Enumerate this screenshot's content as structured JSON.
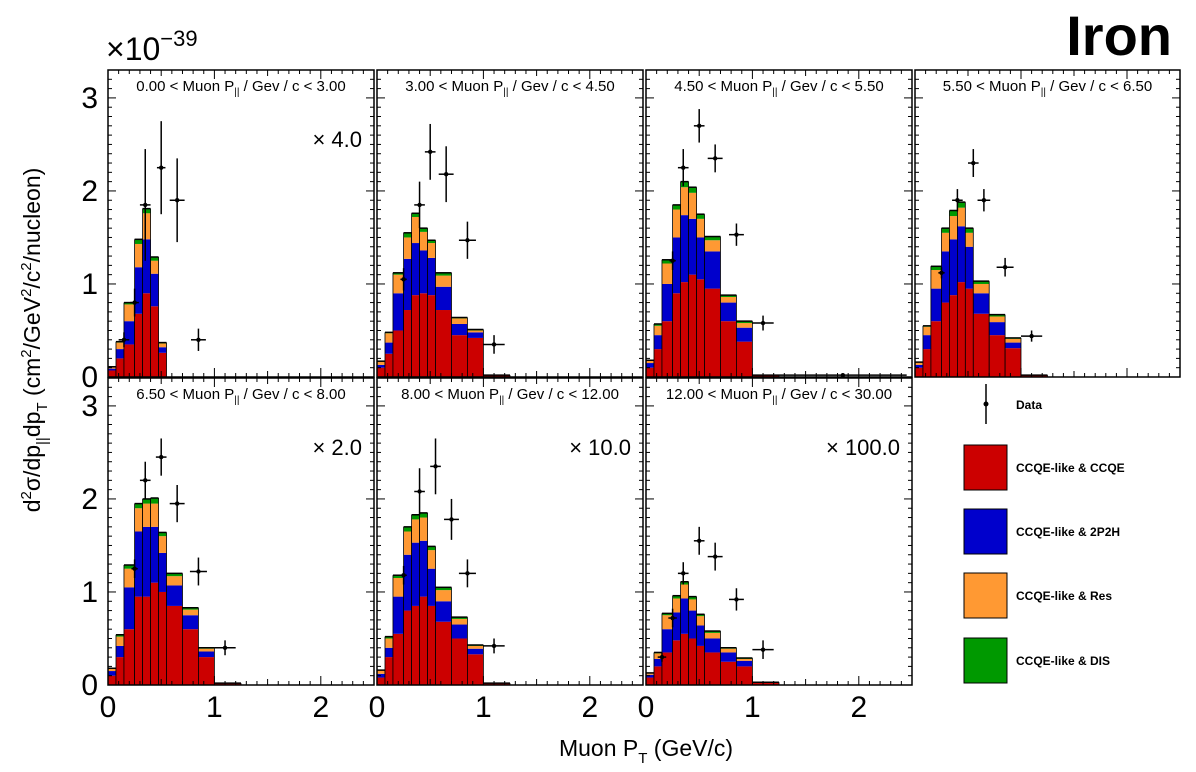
{
  "figure": {
    "title": "Iron",
    "exponent_prefix": "×10",
    "exponent_power": "−39",
    "xlabel_main": "Muon P",
    "xlabel_sub": "T",
    "xlabel_unit": " (GeV/c)",
    "ylabel_parts": [
      "d",
      "2",
      "σ/dp",
      "||",
      "dp",
      "T",
      "  (cm",
      "2",
      "/GeV",
      "2",
      "/c",
      "2",
      "/nucleon)"
    ],
    "panel_label_prefix_main": "Muon P",
    "panel_label_prefix_sub": "||",
    "panel_label_suffix": " / Gev / c < "
  },
  "legend": {
    "data_label": "Data",
    "entries": [
      {
        "label": "CCQE-like & CCQE",
        "color": "#cc0000"
      },
      {
        "label": "CCQE-like & 2P2H",
        "color": "#0000cc"
      },
      {
        "label": "CCQE-like & Res",
        "color": "#ff9933"
      },
      {
        "label": "CCQE-like & DIS",
        "color": "#009900"
      }
    ]
  },
  "chart_data": {
    "type": "stacked-histogram-with-data",
    "xlim": [
      0,
      2.5
    ],
    "ylim": [
      0,
      3.3
    ],
    "xticks": [
      0,
      1,
      2
    ],
    "xtick_labels": [
      "0",
      "1",
      "2"
    ],
    "yticks": [
      0,
      1,
      2,
      3
    ],
    "ytick_labels": [
      "0",
      "1",
      "2",
      "3"
    ],
    "y_scale_factor": "1e-39",
    "bin_edges": [
      0,
      0.075,
      0.15,
      0.25,
      0.325,
      0.4,
      0.475,
      0.55,
      0.7,
      0.85,
      1.0,
      1.25,
      2.5
    ],
    "series_names": [
      "CCQE-like & CCQE",
      "CCQE-like & 2P2H",
      "CCQE-like & Res",
      "CCQE-like & DIS"
    ],
    "series_colors": [
      "#cc0000",
      "#0000cc",
      "#ff9933",
      "#009900"
    ],
    "panels": [
      {
        "range_low": "0.00",
        "range_high": "3.00",
        "scale": "× 4.0",
        "bins": [
          [
            0.07,
            0.02,
            0.02,
            0.0
          ],
          [
            0.2,
            0.1,
            0.07,
            0.01
          ],
          [
            0.35,
            0.25,
            0.18,
            0.02
          ],
          [
            0.68,
            0.5,
            0.25,
            0.05
          ],
          [
            0.9,
            0.58,
            0.28,
            0.05
          ],
          [
            0.76,
            0.35,
            0.14,
            0.04
          ],
          [
            0.26,
            0.06,
            0.04,
            0.01
          ],
          [
            0,
            0,
            0,
            0
          ],
          [
            0,
            0,
            0,
            0
          ],
          [
            0,
            0,
            0,
            0
          ],
          [
            0,
            0,
            0,
            0
          ]
        ],
        "data": [
          {
            "x": 0.15,
            "y": 0.4,
            "ex": 0.05,
            "ey": 0.08
          },
          {
            "x": 0.25,
            "y": 0.8,
            "ex": 0.04,
            "ey": 0.15
          },
          {
            "x": 0.35,
            "y": 1.85,
            "ex": 0.05,
            "ey": 0.6
          },
          {
            "x": 0.5,
            "y": 2.25,
            "ex": 0.04,
            "ey": 0.5
          },
          {
            "x": 0.65,
            "y": 1.9,
            "ex": 0.07,
            "ey": 0.45
          },
          {
            "x": 0.85,
            "y": 0.4,
            "ex": 0.07,
            "ey": 0.12
          }
        ]
      },
      {
        "range_low": "3.00",
        "range_high": "4.50",
        "scale": "",
        "bins": [
          [
            0.1,
            0.03,
            0.04,
            0.0
          ],
          [
            0.25,
            0.12,
            0.1,
            0.01
          ],
          [
            0.5,
            0.4,
            0.2,
            0.02
          ],
          [
            0.72,
            0.55,
            0.23,
            0.05
          ],
          [
            0.88,
            0.56,
            0.28,
            0.04
          ],
          [
            0.9,
            0.46,
            0.2,
            0.04
          ],
          [
            0.88,
            0.4,
            0.16,
            0.03
          ],
          [
            0.72,
            0.25,
            0.12,
            0.03
          ],
          [
            0.45,
            0.12,
            0.06,
            0.01
          ],
          [
            0.42,
            0.06,
            0.02,
            0.01
          ],
          [
            0.02,
            0.0,
            0.0,
            0.0
          ]
        ],
        "data": [
          {
            "x": 0.25,
            "y": 1.05,
            "ex": 0.03,
            "ey": 0.12
          },
          {
            "x": 0.4,
            "y": 1.85,
            "ex": 0.05,
            "ey": 0.25
          },
          {
            "x": 0.5,
            "y": 2.42,
            "ex": 0.05,
            "ey": 0.3
          },
          {
            "x": 0.65,
            "y": 2.18,
            "ex": 0.07,
            "ey": 0.3
          },
          {
            "x": 0.85,
            "y": 1.47,
            "ex": 0.08,
            "ey": 0.2
          },
          {
            "x": 1.1,
            "y": 0.35,
            "ex": 0.1,
            "ey": 0.1
          }
        ]
      },
      {
        "range_low": "4.50",
        "range_high": "5.50",
        "scale": "",
        "bins": [
          [
            0.1,
            0.05,
            0.03,
            0.0
          ],
          [
            0.3,
            0.15,
            0.1,
            0.02
          ],
          [
            0.6,
            0.4,
            0.22,
            0.04
          ],
          [
            0.9,
            0.6,
            0.3,
            0.05
          ],
          [
            1.02,
            0.72,
            0.3,
            0.06
          ],
          [
            1.1,
            0.6,
            0.28,
            0.06
          ],
          [
            1.05,
            0.45,
            0.2,
            0.05
          ],
          [
            0.95,
            0.4,
            0.12,
            0.04
          ],
          [
            0.6,
            0.2,
            0.06,
            0.02
          ],
          [
            0.38,
            0.15,
            0.05,
            0.02
          ],
          [
            0.02,
            0.0,
            0.0,
            0.0
          ]
        ],
        "data": [
          {
            "x": 0.25,
            "y": 1.25,
            "ex": 0.03,
            "ey": 0.1
          },
          {
            "x": 0.35,
            "y": 2.25,
            "ex": 0.05,
            "ey": 0.2
          },
          {
            "x": 0.5,
            "y": 2.7,
            "ex": 0.05,
            "ey": 0.18
          },
          {
            "x": 0.65,
            "y": 2.35,
            "ex": 0.07,
            "ey": 0.15
          },
          {
            "x": 0.85,
            "y": 1.53,
            "ex": 0.07,
            "ey": 0.12
          },
          {
            "x": 1.1,
            "y": 0.58,
            "ex": 0.1,
            "ey": 0.08
          },
          {
            "x": 1.85,
            "y": 0.02,
            "ex": 0.6,
            "ey": 0.01
          }
        ]
      },
      {
        "range_low": "5.50",
        "range_high": "6.50",
        "scale": "",
        "bins": [
          [
            0.1,
            0.03,
            0.03,
            0.0
          ],
          [
            0.3,
            0.15,
            0.09,
            0.01
          ],
          [
            0.6,
            0.35,
            0.2,
            0.04
          ],
          [
            0.8,
            0.55,
            0.2,
            0.05
          ],
          [
            0.88,
            0.6,
            0.25,
            0.06
          ],
          [
            1.02,
            0.6,
            0.2,
            0.06
          ],
          [
            0.95,
            0.45,
            0.15,
            0.05
          ],
          [
            0.68,
            0.22,
            0.1,
            0.03
          ],
          [
            0.45,
            0.14,
            0.06,
            0.02
          ],
          [
            0.31,
            0.06,
            0.04,
            0.01
          ],
          [
            0.02,
            0.0,
            0.0,
            0.0
          ]
        ],
        "data": [
          {
            "x": 0.25,
            "y": 1.12,
            "ex": 0.03,
            "ey": 0.06
          },
          {
            "x": 0.4,
            "y": 1.9,
            "ex": 0.05,
            "ey": 0.12
          },
          {
            "x": 0.55,
            "y": 2.3,
            "ex": 0.05,
            "ey": 0.15
          },
          {
            "x": 0.65,
            "y": 1.9,
            "ex": 0.06,
            "ey": 0.12
          },
          {
            "x": 0.85,
            "y": 1.18,
            "ex": 0.08,
            "ey": 0.1
          },
          {
            "x": 1.1,
            "y": 0.44,
            "ex": 0.1,
            "ey": 0.06
          }
        ]
      },
      {
        "range_low": "6.50",
        "range_high": "8.00",
        "scale": "× 2.0",
        "bins": [
          [
            0.1,
            0.05,
            0.03,
            0.0
          ],
          [
            0.3,
            0.12,
            0.1,
            0.02
          ],
          [
            0.6,
            0.45,
            0.2,
            0.04
          ],
          [
            0.95,
            0.7,
            0.25,
            0.05
          ],
          [
            0.95,
            0.75,
            0.25,
            0.05
          ],
          [
            1.1,
            0.6,
            0.25,
            0.06
          ],
          [
            1.0,
            0.42,
            0.18,
            0.04
          ],
          [
            0.85,
            0.22,
            0.1,
            0.03
          ],
          [
            0.6,
            0.15,
            0.06,
            0.02
          ],
          [
            0.3,
            0.06,
            0.03,
            0.01
          ],
          [
            0.02,
            0.0,
            0.0,
            0.0
          ]
        ],
        "data": [
          {
            "x": 0.25,
            "y": 1.25,
            "ex": 0.03,
            "ey": 0.1
          },
          {
            "x": 0.35,
            "y": 2.2,
            "ex": 0.05,
            "ey": 0.2
          },
          {
            "x": 0.5,
            "y": 2.45,
            "ex": 0.05,
            "ey": 0.2
          },
          {
            "x": 0.65,
            "y": 1.95,
            "ex": 0.07,
            "ey": 0.2
          },
          {
            "x": 0.85,
            "y": 1.22,
            "ex": 0.08,
            "ey": 0.15
          },
          {
            "x": 1.1,
            "y": 0.4,
            "ex": 0.1,
            "ey": 0.08
          }
        ]
      },
      {
        "range_low": "8.00",
        "range_high": "12.00",
        "scale": "× 10.0",
        "bins": [
          [
            0.08,
            0.04,
            0.04,
            0.0
          ],
          [
            0.3,
            0.1,
            0.1,
            0.02
          ],
          [
            0.55,
            0.4,
            0.2,
            0.03
          ],
          [
            0.8,
            0.6,
            0.25,
            0.05
          ],
          [
            0.85,
            0.68,
            0.25,
            0.05
          ],
          [
            0.95,
            0.6,
            0.25,
            0.05
          ],
          [
            0.85,
            0.4,
            0.2,
            0.04
          ],
          [
            0.68,
            0.22,
            0.12,
            0.03
          ],
          [
            0.5,
            0.15,
            0.06,
            0.02
          ],
          [
            0.33,
            0.06,
            0.03,
            0.01
          ],
          [
            0.02,
            0.0,
            0.0,
            0.0
          ]
        ],
        "data": [
          {
            "x": 0.25,
            "y": 1.18,
            "ex": 0.03,
            "ey": 0.1
          },
          {
            "x": 0.4,
            "y": 2.08,
            "ex": 0.05,
            "ey": 0.25
          },
          {
            "x": 0.55,
            "y": 2.35,
            "ex": 0.05,
            "ey": 0.3
          },
          {
            "x": 0.7,
            "y": 1.78,
            "ex": 0.07,
            "ey": 0.22
          },
          {
            "x": 0.85,
            "y": 1.2,
            "ex": 0.08,
            "ey": 0.15
          },
          {
            "x": 1.1,
            "y": 0.42,
            "ex": 0.1,
            "ey": 0.08
          }
        ]
      },
      {
        "range_low": "12.00",
        "range_high": "30.00",
        "scale": "× 100.0",
        "bins": [
          [
            0.08,
            0.03,
            0.02,
            0.0
          ],
          [
            0.2,
            0.08,
            0.06,
            0.01
          ],
          [
            0.35,
            0.25,
            0.15,
            0.02
          ],
          [
            0.48,
            0.3,
            0.15,
            0.03
          ],
          [
            0.55,
            0.38,
            0.15,
            0.03
          ],
          [
            0.5,
            0.3,
            0.12,
            0.03
          ],
          [
            0.42,
            0.22,
            0.1,
            0.02
          ],
          [
            0.35,
            0.15,
            0.06,
            0.02
          ],
          [
            0.25,
            0.1,
            0.04,
            0.01
          ],
          [
            0.2,
            0.06,
            0.02,
            0.01
          ],
          [
            0.03,
            0.0,
            0.0,
            0.0
          ]
        ],
        "data": [
          {
            "x": 0.15,
            "y": 0.3,
            "ex": 0.04,
            "ey": 0.05
          },
          {
            "x": 0.25,
            "y": 0.72,
            "ex": 0.04,
            "ey": 0.1
          },
          {
            "x": 0.35,
            "y": 1.2,
            "ex": 0.05,
            "ey": 0.12
          },
          {
            "x": 0.5,
            "y": 1.55,
            "ex": 0.05,
            "ey": 0.15
          },
          {
            "x": 0.65,
            "y": 1.38,
            "ex": 0.07,
            "ey": 0.15
          },
          {
            "x": 0.85,
            "y": 0.92,
            "ex": 0.07,
            "ey": 0.12
          },
          {
            "x": 1.1,
            "y": 0.38,
            "ex": 0.1,
            "ey": 0.1
          }
        ]
      }
    ]
  }
}
